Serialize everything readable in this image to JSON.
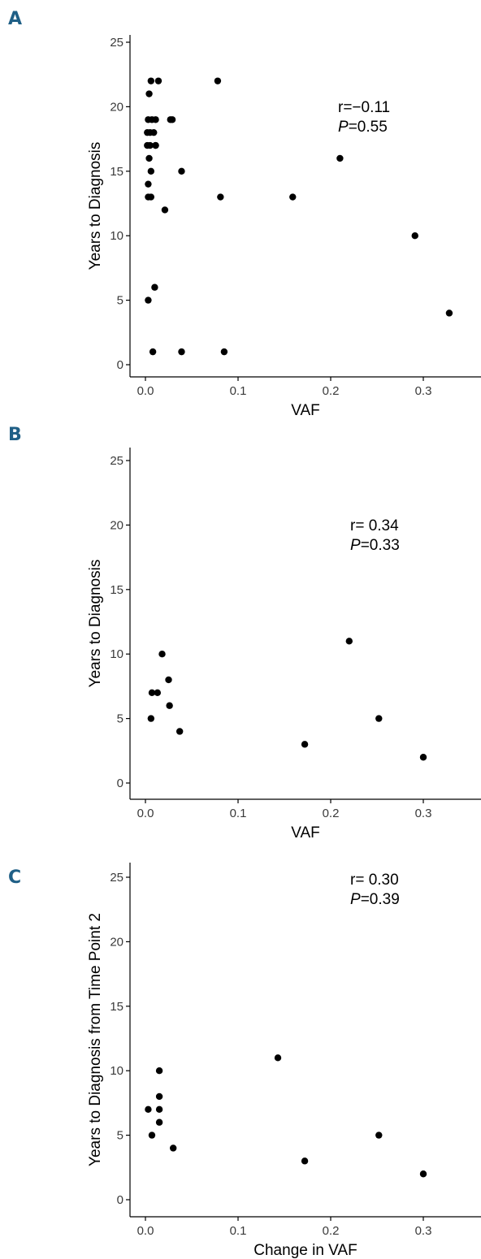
{
  "chart_data": [
    {
      "type": "scatter",
      "panel_label": "A",
      "xlabel": "VAF",
      "ylabel": "Years to Diagnosis",
      "xlim": [
        -0.02,
        0.36
      ],
      "ylim": [
        -0.5,
        25.5
      ],
      "xticks": [
        0.0,
        0.1,
        0.2,
        0.3
      ],
      "xtick_labels": [
        "0.0",
        "0.1",
        "0.2",
        "0.3"
      ],
      "yticks": [
        0,
        5,
        10,
        15,
        20,
        25
      ],
      "ytick_labels": [
        "0",
        "5",
        "10",
        "15",
        "20",
        "25"
      ],
      "grid": false,
      "annotation": {
        "r_text": "r=−0.11",
        "p_label": "P",
        "p_text": "=0.55"
      },
      "x": [
        0.006,
        0.014,
        0.004,
        0.078,
        0.003,
        0.007,
        0.011,
        0.027,
        0.002,
        0.005,
        0.009,
        0.002,
        0.005,
        0.011,
        0.004,
        0.006,
        0.039,
        0.003,
        0.003,
        0.006,
        0.081,
        0.159,
        0.021,
        0.029,
        0.011,
        0.291,
        0.01,
        0.003,
        0.328,
        0.008,
        0.039,
        0.085,
        0.21
      ],
      "y": [
        22,
        22,
        21,
        22,
        19,
        19,
        19,
        19,
        18,
        18,
        18,
        17,
        17,
        17,
        16,
        15,
        15,
        14,
        13,
        13,
        13,
        13,
        12,
        19,
        17,
        10,
        6,
        5,
        4,
        1,
        1,
        1,
        16
      ]
    },
    {
      "type": "scatter",
      "panel_label": "B",
      "xlabel": "VAF",
      "ylabel": "Years to Diagnosis",
      "xlim": [
        -0.02,
        0.36
      ],
      "ylim": [
        -0.5,
        25.5
      ],
      "xticks": [
        0.0,
        0.1,
        0.2,
        0.3
      ],
      "xtick_labels": [
        "0.0",
        "0.1",
        "0.2",
        "0.3"
      ],
      "yticks": [
        0,
        5,
        10,
        15,
        20,
        25
      ],
      "ytick_labels": [
        "0",
        "5",
        "10",
        "15",
        "20",
        "25"
      ],
      "grid": false,
      "annotation": {
        "r_text": "r= 0.34",
        "p_label": "P",
        "p_text": "=0.33"
      },
      "x": [
        0.018,
        0.007,
        0.013,
        0.025,
        0.026,
        0.006,
        0.037,
        0.172,
        0.22,
        0.252,
        0.3
      ],
      "y": [
        10,
        7,
        7,
        8,
        6,
        5,
        4,
        3,
        11,
        5,
        2
      ]
    },
    {
      "type": "scatter",
      "panel_label": "C",
      "xlabel": "Change in VAF",
      "ylabel": "Years to Diagnosis from Time Point 2",
      "xlim": [
        -0.02,
        0.36
      ],
      "ylim": [
        -0.5,
        25.5
      ],
      "xticks": [
        0.0,
        0.1,
        0.2,
        0.3
      ],
      "xtick_labels": [
        "0.0",
        "0.1",
        "0.2",
        "0.3"
      ],
      "yticks": [
        0,
        5,
        10,
        15,
        20,
        25
      ],
      "ytick_labels": [
        "0",
        "5",
        "10",
        "15",
        "20",
        "25"
      ],
      "grid": false,
      "annotation": {
        "r_text": "r= 0.30",
        "p_label": "P",
        "p_text": "=0.39"
      },
      "x": [
        0.015,
        0.003,
        0.015,
        0.015,
        0.015,
        0.007,
        0.03,
        0.143,
        0.172,
        0.252,
        0.3
      ],
      "y": [
        10,
        7,
        8,
        7,
        6,
        5,
        4,
        11,
        3,
        5,
        2
      ]
    }
  ]
}
